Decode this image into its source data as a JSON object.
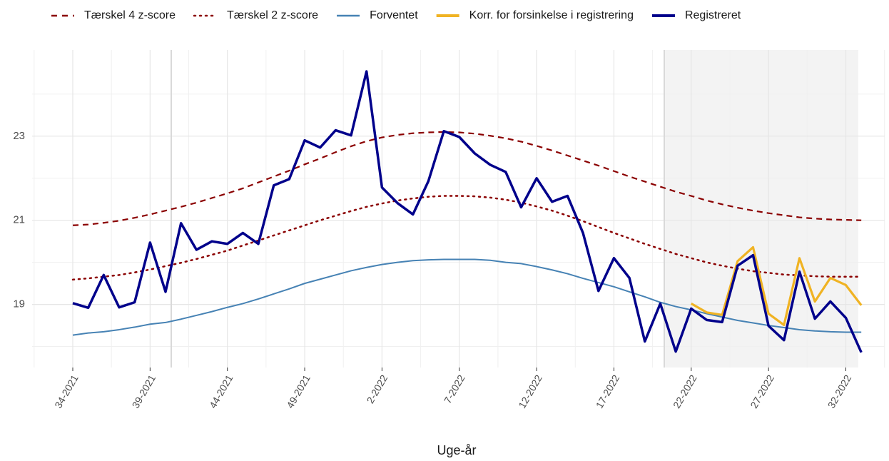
{
  "chart_data": {
    "type": "line",
    "x_label": "Uge-år",
    "categories": [
      "34-2021",
      null,
      null,
      null,
      null,
      "39-2021",
      null,
      null,
      null,
      null,
      "44-2021",
      null,
      null,
      null,
      null,
      "49-2021",
      null,
      null,
      null,
      null,
      "2-2022",
      null,
      null,
      null,
      null,
      "7-2022",
      null,
      null,
      null,
      null,
      "12-2022",
      null,
      null,
      null,
      null,
      "17-2022",
      null,
      null,
      null,
      null,
      "22-2022",
      null,
      null,
      null,
      null,
      "27-2022",
      null,
      null,
      null,
      null,
      "32-2022",
      null
    ],
    "ylim": [
      17.5,
      25.05
    ],
    "yticks": [
      19,
      21,
      23
    ],
    "y_minor_grid": [
      18,
      20,
      22,
      24
    ],
    "grid": true,
    "legend": "top",
    "series": [
      {
        "name": "Tærskel 4 z-score",
        "color": "#8b0000",
        "dash": "dashed",
        "values": [
          20.88,
          20.9,
          20.94,
          20.99,
          21.06,
          21.14,
          21.23,
          21.32,
          21.42,
          21.53,
          21.64,
          21.76,
          21.9,
          22.04,
          22.18,
          22.33,
          22.47,
          22.62,
          22.76,
          22.88,
          22.97,
          23.03,
          23.07,
          23.09,
          23.1,
          23.09,
          23.06,
          23.01,
          22.95,
          22.87,
          22.77,
          22.66,
          22.54,
          22.42,
          22.3,
          22.17,
          22.04,
          21.92,
          21.8,
          21.68,
          21.58,
          21.47,
          21.38,
          21.3,
          21.23,
          21.17,
          21.12,
          21.07,
          21.04,
          21.02,
          21.01,
          21.0
        ]
      },
      {
        "name": "Tærskel 2 z-score",
        "color": "#8b0000",
        "dash": "dotted",
        "values": [
          19.59,
          19.62,
          19.66,
          19.7,
          19.76,
          19.83,
          19.91,
          19.99,
          20.08,
          20.18,
          20.28,
          20.4,
          20.52,
          20.64,
          20.76,
          20.88,
          21.0,
          21.11,
          21.22,
          21.32,
          21.4,
          21.47,
          21.52,
          21.56,
          21.58,
          21.58,
          21.57,
          21.54,
          21.49,
          21.42,
          21.33,
          21.23,
          21.11,
          20.98,
          20.84,
          20.7,
          20.57,
          20.44,
          20.32,
          20.2,
          20.1,
          20.0,
          19.92,
          19.85,
          19.79,
          19.75,
          19.71,
          19.69,
          19.67,
          19.66,
          19.66,
          19.66
        ]
      },
      {
        "name": "Forventet",
        "color": "#4682b4",
        "dash": "solid",
        "values": [
          18.27,
          18.32,
          18.35,
          18.4,
          18.46,
          18.53,
          18.57,
          18.65,
          18.74,
          18.83,
          18.93,
          19.02,
          19.13,
          19.25,
          19.37,
          19.5,
          19.6,
          19.7,
          19.8,
          19.88,
          19.95,
          20.0,
          20.04,
          20.06,
          20.07,
          20.07,
          20.07,
          20.05,
          20.0,
          19.97,
          19.9,
          19.82,
          19.73,
          19.62,
          19.52,
          19.42,
          19.3,
          19.18,
          19.05,
          18.95,
          18.87,
          18.78,
          18.7,
          18.62,
          18.56,
          18.5,
          18.45,
          18.4,
          18.37,
          18.35,
          18.34,
          18.34
        ]
      },
      {
        "name": "Korr. for forsinkelse i registrering",
        "color": "#f0b323",
        "dash": "solid",
        "values": [
          null,
          null,
          null,
          null,
          null,
          null,
          null,
          null,
          null,
          null,
          null,
          null,
          null,
          null,
          null,
          null,
          null,
          null,
          null,
          null,
          null,
          null,
          null,
          null,
          null,
          null,
          null,
          null,
          null,
          null,
          null,
          null,
          null,
          null,
          null,
          null,
          null,
          null,
          null,
          null,
          19.02,
          18.81,
          18.75,
          20.03,
          20.36,
          18.78,
          18.51,
          20.1,
          19.07,
          19.63,
          19.46,
          18.98
        ]
      },
      {
        "name": "Registreret",
        "color": "#00008b",
        "dash": "solid",
        "values": [
          19.03,
          18.92,
          19.7,
          18.93,
          19.05,
          20.47,
          19.3,
          20.93,
          20.3,
          20.5,
          20.44,
          20.7,
          20.44,
          21.83,
          21.98,
          22.9,
          22.73,
          23.14,
          23.02,
          24.54,
          21.78,
          21.41,
          21.14,
          21.93,
          23.12,
          22.98,
          22.59,
          22.32,
          22.15,
          21.31,
          22.0,
          21.44,
          21.58,
          20.7,
          19.32,
          20.1,
          19.63,
          18.12,
          19.02,
          17.88,
          18.9,
          18.63,
          18.58,
          19.92,
          20.17,
          18.49,
          18.15,
          19.78,
          18.66,
          19.07,
          18.68,
          17.86
        ]
      }
    ]
  }
}
